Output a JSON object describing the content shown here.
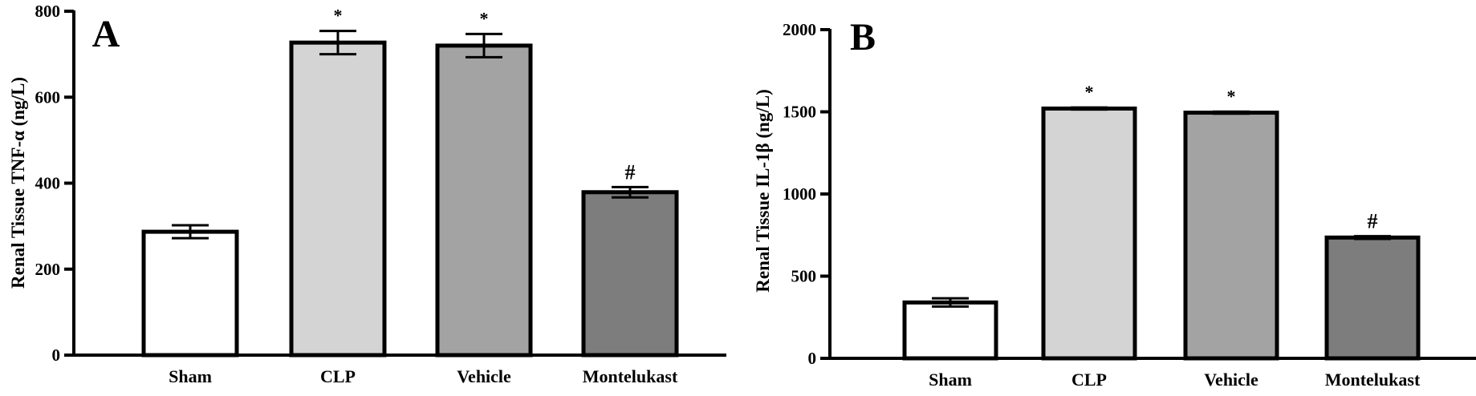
{
  "chart_data": [
    {
      "type": "bar",
      "panel_label": "A",
      "ylabel": "Renal Tissue TNF-α (ng/L)",
      "categories": [
        "Sham",
        "CLP",
        "Vehicle",
        "Montelukast"
      ],
      "values": [
        287,
        727,
        720,
        379
      ],
      "errors": [
        15,
        27,
        27,
        12
      ],
      "annotations": [
        "",
        "*",
        "*",
        "#"
      ],
      "colors": [
        "#ffffff",
        "#d4d4d4",
        "#a3a3a3",
        "#7d7d7d"
      ],
      "ylim": [
        0,
        800
      ],
      "yticks": [
        0,
        200,
        400,
        600,
        800
      ],
      "grid": false
    },
    {
      "type": "bar",
      "panel_label": "B",
      "ylabel": "Renal Tissue IL-1β (ng/L)",
      "categories": [
        "Sham",
        "CLP",
        "Vehicle",
        "Montelukast"
      ],
      "values": [
        340,
        1520,
        1495,
        735
      ],
      "errors": [
        25,
        6,
        6,
        8
      ],
      "annotations": [
        "",
        "*",
        "*",
        "#"
      ],
      "colors": [
        "#ffffff",
        "#d4d4d4",
        "#a3a3a3",
        "#7d7d7d"
      ],
      "ylim": [
        0,
        2000
      ],
      "yticks": [
        0,
        500,
        1000,
        1500,
        2000
      ],
      "grid": false
    }
  ]
}
